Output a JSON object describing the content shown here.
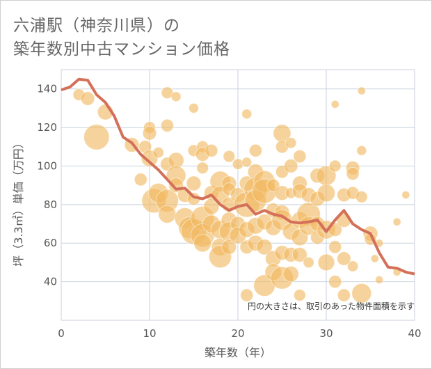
{
  "title_line1": "六浦駅（神奈川県）の",
  "title_line2": "築年数別中古マンション価格",
  "chart_data": {
    "type": "scatter",
    "xlabel": "築年数（年）",
    "ylabel": "坪（3.3㎡）単価（万円）",
    "xlim": [
      0,
      40
    ],
    "ylim": [
      20,
      150
    ],
    "xticks": [
      0,
      10,
      20,
      30,
      40
    ],
    "yticks": [
      40,
      60,
      80,
      100,
      120,
      140
    ],
    "grid": true,
    "annotation": "円の大きさは、取引のあった物件面積を示す",
    "colors": {
      "bubble": "#f0b860",
      "trend": "#d4705a",
      "grid": "#c8d2dc"
    },
    "trend_line": {
      "x": [
        0,
        1,
        2,
        3,
        4,
        5,
        6,
        7,
        8,
        9,
        10,
        11,
        12,
        13,
        14,
        15,
        16,
        17,
        18,
        19,
        20,
        21,
        22,
        23,
        24,
        25,
        26,
        27,
        28,
        29,
        30,
        31,
        32,
        33,
        34,
        35,
        36,
        37,
        38,
        39,
        40
      ],
      "y": [
        139.5,
        141,
        145,
        144.5,
        137,
        133,
        126,
        115,
        112,
        106,
        102,
        98,
        93,
        88,
        88.5,
        84,
        83,
        85,
        80,
        77,
        79,
        80,
        75,
        77,
        75,
        74,
        71,
        70.5,
        71,
        72,
        66,
        72,
        77,
        70,
        67,
        65,
        55,
        47.5,
        47,
        45,
        44
      ]
    },
    "points": [
      {
        "x": 2,
        "y": 137,
        "s": 1.2
      },
      {
        "x": 3,
        "y": 135,
        "s": 1.4
      },
      {
        "x": 4,
        "y": 115,
        "s": 2.6
      },
      {
        "x": 5,
        "y": 128,
        "s": 1.6
      },
      {
        "x": 8,
        "y": 111,
        "s": 1.5
      },
      {
        "x": 9,
        "y": 93,
        "s": 1.3
      },
      {
        "x": 9.5,
        "y": 110,
        "s": 1.3
      },
      {
        "x": 10,
        "y": 120,
        "s": 1.2
      },
      {
        "x": 10,
        "y": 117,
        "s": 1.4
      },
      {
        "x": 10,
        "y": 104,
        "s": 1.7
      },
      {
        "x": 10.5,
        "y": 82,
        "s": 2.5
      },
      {
        "x": 11,
        "y": 107,
        "s": 1.1
      },
      {
        "x": 11,
        "y": 86,
        "s": 2
      },
      {
        "x": 12,
        "y": 138,
        "s": 1.2
      },
      {
        "x": 12,
        "y": 121,
        "s": 1.3
      },
      {
        "x": 12,
        "y": 101,
        "s": 1.4
      },
      {
        "x": 12,
        "y": 82,
        "s": 2.3
      },
      {
        "x": 12,
        "y": 75,
        "s": 1.8
      },
      {
        "x": 13,
        "y": 136,
        "s": 1
      },
      {
        "x": 13,
        "y": 103,
        "s": 1.6
      },
      {
        "x": 13,
        "y": 95,
        "s": 2
      },
      {
        "x": 13,
        "y": 90,
        "s": 1.5
      },
      {
        "x": 14,
        "y": 85,
        "s": 1.5
      },
      {
        "x": 14,
        "y": 73,
        "s": 2.1
      },
      {
        "x": 14.5,
        "y": 68,
        "s": 2.2
      },
      {
        "x": 15,
        "y": 130,
        "s": 1
      },
      {
        "x": 15,
        "y": 108,
        "s": 1.2
      },
      {
        "x": 15,
        "y": 91,
        "s": 1.5
      },
      {
        "x": 15,
        "y": 83,
        "s": 1.3
      },
      {
        "x": 15,
        "y": 66,
        "s": 2.6
      },
      {
        "x": 16,
        "y": 110,
        "s": 1.2
      },
      {
        "x": 16,
        "y": 106,
        "s": 1.4
      },
      {
        "x": 16,
        "y": 99,
        "s": 1.2
      },
      {
        "x": 16,
        "y": 73,
        "s": 2.4
      },
      {
        "x": 16,
        "y": 64,
        "s": 2.4
      },
      {
        "x": 16,
        "y": 60,
        "s": 1.8
      },
      {
        "x": 17,
        "y": 108,
        "s": 1.3
      },
      {
        "x": 17,
        "y": 86,
        "s": 1.5
      },
      {
        "x": 17,
        "y": 79,
        "s": 1.6
      },
      {
        "x": 17,
        "y": 70,
        "s": 1.8
      },
      {
        "x": 18,
        "y": 92,
        "s": 2.1
      },
      {
        "x": 18,
        "y": 85,
        "s": 1.8
      },
      {
        "x": 18,
        "y": 67,
        "s": 1.9
      },
      {
        "x": 18,
        "y": 58,
        "s": 1.8
      },
      {
        "x": 18,
        "y": 53,
        "s": 2.3
      },
      {
        "x": 19,
        "y": 105,
        "s": 1.2
      },
      {
        "x": 19,
        "y": 91,
        "s": 1.5
      },
      {
        "x": 19,
        "y": 88,
        "s": 1.3
      },
      {
        "x": 19,
        "y": 80,
        "s": 1.5
      },
      {
        "x": 19,
        "y": 72,
        "s": 1.6
      },
      {
        "x": 19,
        "y": 66,
        "s": 2
      },
      {
        "x": 19,
        "y": 58,
        "s": 1.5
      },
      {
        "x": 20,
        "y": 101,
        "s": 1.1
      },
      {
        "x": 20,
        "y": 85,
        "s": 1.5
      },
      {
        "x": 20,
        "y": 70,
        "s": 1.5
      },
      {
        "x": 20,
        "y": 64,
        "s": 1.7
      },
      {
        "x": 21,
        "y": 127,
        "s": 1
      },
      {
        "x": 21,
        "y": 102,
        "s": 1
      },
      {
        "x": 21,
        "y": 91,
        "s": 1.5
      },
      {
        "x": 21,
        "y": 80,
        "s": 2.6
      },
      {
        "x": 21,
        "y": 67,
        "s": 1.6
      },
      {
        "x": 21,
        "y": 58,
        "s": 1.4
      },
      {
        "x": 21,
        "y": 33,
        "s": 1.3
      },
      {
        "x": 22,
        "y": 108,
        "s": 1.3
      },
      {
        "x": 22,
        "y": 97,
        "s": 1.6
      },
      {
        "x": 22,
        "y": 88,
        "s": 2.4
      },
      {
        "x": 22,
        "y": 82,
        "s": 2.2
      },
      {
        "x": 22,
        "y": 69,
        "s": 1.7
      },
      {
        "x": 22,
        "y": 60,
        "s": 1.6
      },
      {
        "x": 23,
        "y": 92,
        "s": 2.2
      },
      {
        "x": 23,
        "y": 87,
        "s": 2.5
      },
      {
        "x": 23,
        "y": 71,
        "s": 1.6
      },
      {
        "x": 23,
        "y": 58,
        "s": 1.6
      },
      {
        "x": 23,
        "y": 38,
        "s": 2.2
      },
      {
        "x": 24,
        "y": 90,
        "s": 1.3
      },
      {
        "x": 24,
        "y": 77,
        "s": 1.5
      },
      {
        "x": 24,
        "y": 68,
        "s": 1.6
      },
      {
        "x": 24,
        "y": 52,
        "s": 1.6
      },
      {
        "x": 24,
        "y": 45,
        "s": 1.7
      },
      {
        "x": 25,
        "y": 117,
        "s": 1.8
      },
      {
        "x": 25,
        "y": 110,
        "s": 1.3
      },
      {
        "x": 25,
        "y": 97,
        "s": 1.3
      },
      {
        "x": 25,
        "y": 86,
        "s": 1.5
      },
      {
        "x": 25,
        "y": 76,
        "s": 1.5
      },
      {
        "x": 25,
        "y": 72,
        "s": 2.1
      },
      {
        "x": 25,
        "y": 55,
        "s": 1.5
      },
      {
        "x": 25,
        "y": 42,
        "s": 2.3
      },
      {
        "x": 26,
        "y": 112,
        "s": 1.1
      },
      {
        "x": 26,
        "y": 100,
        "s": 1.4
      },
      {
        "x": 26,
        "y": 86,
        "s": 1.1
      },
      {
        "x": 26,
        "y": 66,
        "s": 1.7
      },
      {
        "x": 26,
        "y": 54,
        "s": 1.5
      },
      {
        "x": 26,
        "y": 44,
        "s": 1.6
      },
      {
        "x": 27,
        "y": 105,
        "s": 1.3
      },
      {
        "x": 27,
        "y": 91,
        "s": 1.5
      },
      {
        "x": 27,
        "y": 87,
        "s": 1.5
      },
      {
        "x": 27,
        "y": 72,
        "s": 1.7
      },
      {
        "x": 27,
        "y": 63,
        "s": 1.7
      },
      {
        "x": 27,
        "y": 54,
        "s": 1.5
      },
      {
        "x": 27,
        "y": 33,
        "s": 1.2
      },
      {
        "x": 28,
        "y": 85,
        "s": 1.5
      },
      {
        "x": 28,
        "y": 75,
        "s": 2.4
      },
      {
        "x": 28,
        "y": 69,
        "s": 1.9
      },
      {
        "x": 28,
        "y": 50,
        "s": 1.1
      },
      {
        "x": 29,
        "y": 95,
        "s": 1.5
      },
      {
        "x": 29,
        "y": 83,
        "s": 1.5
      },
      {
        "x": 29,
        "y": 70,
        "s": 1.5
      },
      {
        "x": 29,
        "y": 63,
        "s": 1.4
      },
      {
        "x": 30,
        "y": 95,
        "s": 2
      },
      {
        "x": 30,
        "y": 86,
        "s": 1.8
      },
      {
        "x": 30,
        "y": 67,
        "s": 1.9
      },
      {
        "x": 30,
        "y": 50,
        "s": 1.7
      },
      {
        "x": 31,
        "y": 132,
        "s": 0.8
      },
      {
        "x": 31,
        "y": 100,
        "s": 1.2
      },
      {
        "x": 31,
        "y": 67,
        "s": 1.4
      },
      {
        "x": 31,
        "y": 58,
        "s": 1.3
      },
      {
        "x": 31,
        "y": 40,
        "s": 1.3
      },
      {
        "x": 32,
        "y": 85,
        "s": 1.4
      },
      {
        "x": 32,
        "y": 72,
        "s": 1.5
      },
      {
        "x": 32,
        "y": 52,
        "s": 1.4
      },
      {
        "x": 32,
        "y": 33,
        "s": 1.3
      },
      {
        "x": 33,
        "y": 99,
        "s": 1.4
      },
      {
        "x": 33,
        "y": 96,
        "s": 1.3
      },
      {
        "x": 33,
        "y": 86,
        "s": 1.3
      },
      {
        "x": 33,
        "y": 48,
        "s": 1.1
      },
      {
        "x": 34,
        "y": 139,
        "s": 0.8
      },
      {
        "x": 34,
        "y": 108,
        "s": 1
      },
      {
        "x": 34,
        "y": 84,
        "s": 1.2
      },
      {
        "x": 34,
        "y": 34,
        "s": 2
      },
      {
        "x": 35,
        "y": 65,
        "s": 1.5
      },
      {
        "x": 35,
        "y": 62,
        "s": 1.2
      },
      {
        "x": 35.5,
        "y": 52,
        "s": 0.8
      },
      {
        "x": 36,
        "y": 60,
        "s": 0.8
      },
      {
        "x": 36,
        "y": 41,
        "s": 0.8
      },
      {
        "x": 38,
        "y": 71,
        "s": 0.8
      },
      {
        "x": 38,
        "y": 45,
        "s": 0.8
      },
      {
        "x": 39,
        "y": 85,
        "s": 0.8
      }
    ]
  }
}
